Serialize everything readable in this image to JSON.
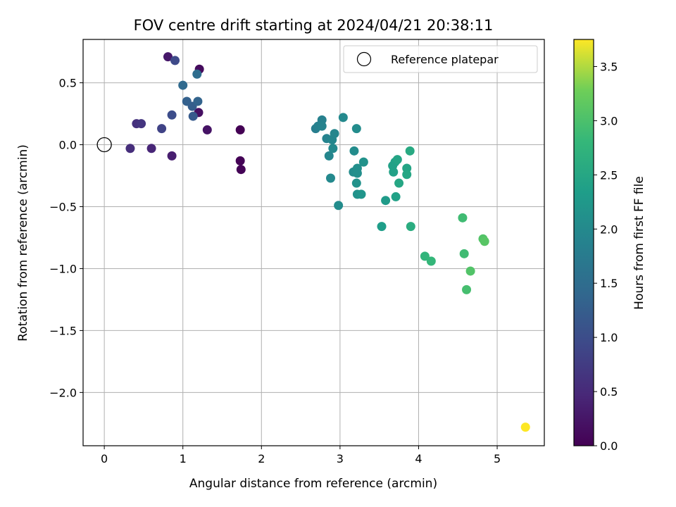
{
  "chart_data": {
    "type": "scatter",
    "title": "FOV centre drift starting at 2024/04/21 20:38:11",
    "xlabel": "Angular distance from reference (arcmin)",
    "ylabel": "Rotation from reference (arcmin)",
    "xlim": [
      -0.27,
      5.6
    ],
    "ylim": [
      -2.43,
      0.85
    ],
    "xticks": [
      0,
      1,
      2,
      3,
      4,
      5
    ],
    "xtick_labels": [
      "0",
      "1",
      "2",
      "3",
      "4",
      "5"
    ],
    "yticks": [
      0.5,
      0.0,
      -0.5,
      -1.0,
      -1.5,
      -2.0
    ],
    "ytick_labels": [
      "0.5",
      "0.0",
      "−0.5",
      "−1.0",
      "−1.5",
      "−2.0"
    ],
    "grid": true,
    "legend": {
      "label": "Reference platepar",
      "placement": "top-right"
    },
    "reference_point": {
      "x": 0.0,
      "y": 0.0
    },
    "colorbar": {
      "label": "Hours from first FF file",
      "min": 0.0,
      "max": 3.75,
      "colormap": "viridis",
      "ticks": [
        0.0,
        0.5,
        1.0,
        1.5,
        2.0,
        2.5,
        3.0,
        3.5
      ],
      "tick_labels": [
        "0.0",
        "0.5",
        "1.0",
        "1.5",
        "2.0",
        "2.5",
        "3.0",
        "3.5"
      ]
    },
    "points": [
      {
        "x": 1.73,
        "y": 0.12,
        "c": 0.0
      },
      {
        "x": 1.73,
        "y": -0.13,
        "c": 0.02
      },
      {
        "x": 1.74,
        "y": -0.2,
        "c": 0.03
      },
      {
        "x": 1.21,
        "y": 0.61,
        "c": 0.12
      },
      {
        "x": 1.2,
        "y": 0.26,
        "c": 0.18
      },
      {
        "x": 1.31,
        "y": 0.12,
        "c": 0.22
      },
      {
        "x": 0.81,
        "y": 0.71,
        "c": 0.28
      },
      {
        "x": 0.86,
        "y": -0.09,
        "c": 0.35
      },
      {
        "x": 0.6,
        "y": -0.03,
        "c": 0.45
      },
      {
        "x": 0.33,
        "y": -0.03,
        "c": 0.55
      },
      {
        "x": 0.41,
        "y": 0.17,
        "c": 0.6
      },
      {
        "x": 0.47,
        "y": 0.17,
        "c": 0.65
      },
      {
        "x": 0.73,
        "y": 0.13,
        "c": 0.85
      },
      {
        "x": 0.86,
        "y": 0.24,
        "c": 1.0
      },
      {
        "x": 0.9,
        "y": 0.68,
        "c": 0.95
      },
      {
        "x": 1.13,
        "y": 0.23,
        "c": 1.2
      },
      {
        "x": 1.12,
        "y": 0.31,
        "c": 1.25
      },
      {
        "x": 1.05,
        "y": 0.35,
        "c": 1.3
      },
      {
        "x": 1.19,
        "y": 0.35,
        "c": 1.35
      },
      {
        "x": 1.0,
        "y": 0.48,
        "c": 1.45
      },
      {
        "x": 1.18,
        "y": 0.57,
        "c": 1.5
      },
      {
        "x": 2.69,
        "y": 0.13,
        "c": 1.8
      },
      {
        "x": 2.72,
        "y": 0.15,
        "c": 1.85
      },
      {
        "x": 2.77,
        "y": 0.2,
        "c": 1.85
      },
      {
        "x": 2.77,
        "y": 0.15,
        "c": 1.9
      },
      {
        "x": 2.83,
        "y": 0.05,
        "c": 1.9
      },
      {
        "x": 2.86,
        "y": -0.09,
        "c": 1.95
      },
      {
        "x": 2.9,
        "y": 0.04,
        "c": 1.95
      },
      {
        "x": 2.93,
        "y": 0.09,
        "c": 1.95
      },
      {
        "x": 2.91,
        "y": -0.03,
        "c": 2.0
      },
      {
        "x": 2.88,
        "y": -0.27,
        "c": 2.0
      },
      {
        "x": 2.98,
        "y": -0.49,
        "c": 2.05
      },
      {
        "x": 3.04,
        "y": 0.22,
        "c": 2.0
      },
      {
        "x": 3.18,
        "y": -0.05,
        "c": 2.05
      },
      {
        "x": 3.21,
        "y": 0.13,
        "c": 2.05
      },
      {
        "x": 3.17,
        "y": -0.22,
        "c": 2.05
      },
      {
        "x": 3.22,
        "y": -0.19,
        "c": 2.1
      },
      {
        "x": 3.22,
        "y": -0.23,
        "c": 2.1
      },
      {
        "x": 3.21,
        "y": -0.31,
        "c": 2.15
      },
      {
        "x": 3.22,
        "y": -0.4,
        "c": 2.15
      },
      {
        "x": 3.27,
        "y": -0.4,
        "c": 2.2
      },
      {
        "x": 3.3,
        "y": -0.14,
        "c": 2.15
      },
      {
        "x": 3.53,
        "y": -0.66,
        "c": 2.35
      },
      {
        "x": 3.58,
        "y": -0.45,
        "c": 2.3
      },
      {
        "x": 3.67,
        "y": -0.17,
        "c": 2.4
      },
      {
        "x": 3.68,
        "y": -0.22,
        "c": 2.4
      },
      {
        "x": 3.7,
        "y": -0.14,
        "c": 2.4
      },
      {
        "x": 3.71,
        "y": -0.42,
        "c": 2.4
      },
      {
        "x": 3.73,
        "y": -0.12,
        "c": 2.45
      },
      {
        "x": 3.75,
        "y": -0.31,
        "c": 2.5
      },
      {
        "x": 3.85,
        "y": -0.19,
        "c": 2.45
      },
      {
        "x": 3.85,
        "y": -0.24,
        "c": 2.5
      },
      {
        "x": 3.89,
        "y": -0.05,
        "c": 2.55
      },
      {
        "x": 3.9,
        "y": -0.66,
        "c": 2.6
      },
      {
        "x": 4.08,
        "y": -0.9,
        "c": 2.75
      },
      {
        "x": 4.16,
        "y": -0.94,
        "c": 2.8
      },
      {
        "x": 4.56,
        "y": -0.59,
        "c": 2.9
      },
      {
        "x": 4.58,
        "y": -0.88,
        "c": 2.9
      },
      {
        "x": 4.61,
        "y": -1.17,
        "c": 2.95
      },
      {
        "x": 4.66,
        "y": -1.02,
        "c": 3.05
      },
      {
        "x": 4.82,
        "y": -0.76,
        "c": 3.05
      },
      {
        "x": 4.84,
        "y": -0.78,
        "c": 3.1
      },
      {
        "x": 5.36,
        "y": -2.28,
        "c": 3.75
      }
    ]
  }
}
